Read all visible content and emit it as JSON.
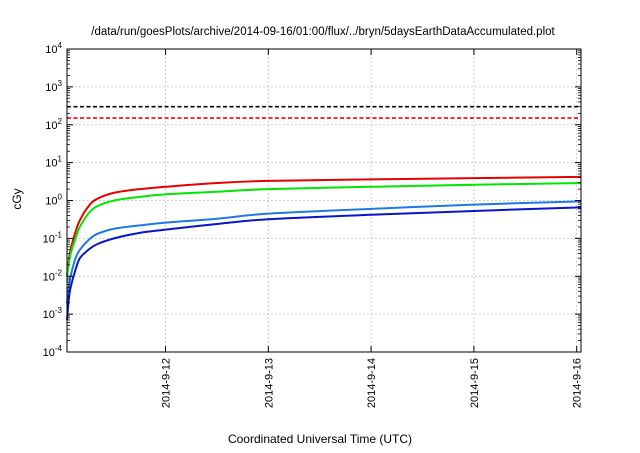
{
  "chart_data": {
    "type": "line",
    "title": "/data/run/goesPlots/archive/2014-09-16/01:00/flux/../bryn/5daysEarthDataAccumulated.plot",
    "xlabel": "Coordinated Universal Time (UTC)",
    "ylabel": "cGy",
    "y_scale": "log",
    "ylim": [
      0.0001,
      10000
    ],
    "y_ticks": [
      {
        "base": "10",
        "exp": "-4",
        "value": 0.0001
      },
      {
        "base": "10",
        "exp": "-3",
        "value": 0.001
      },
      {
        "base": "10",
        "exp": "-2",
        "value": 0.01
      },
      {
        "base": "10",
        "exp": "-1",
        "value": 0.1
      },
      {
        "base": "10",
        "exp": "0",
        "value": 1
      },
      {
        "base": "10",
        "exp": "1",
        "value": 10
      },
      {
        "base": "10",
        "exp": "2",
        "value": 100
      },
      {
        "base": "10",
        "exp": "3",
        "value": 1000
      },
      {
        "base": "10",
        "exp": "4",
        "value": 10000
      }
    ],
    "xlim": [
      "2014-09-11T01:00",
      "2014-09-16T01:00"
    ],
    "x_ticks": [
      "2014-9-12",
      "2014-9-13",
      "2014-9-14",
      "2014-9-15",
      "2014-9-16"
    ],
    "x_tick_dates": [
      "2014-09-12T00:00",
      "2014-09-13T00:00",
      "2014-09-14T00:00",
      "2014-09-15T00:00",
      "2014-09-16T00:00"
    ],
    "grid": true,
    "legend": "none",
    "reference_lines": [
      {
        "color": "#000000",
        "style": "dashed",
        "value": 300
      },
      {
        "color": "#ff0000",
        "style": "dashed",
        "value": 150
      }
    ],
    "series": [
      {
        "color": "#e60000",
        "points": [
          [
            "2014-09-11T01:00",
            0.01
          ],
          [
            "2014-09-11T01:30",
            0.03
          ],
          [
            "2014-09-11T02:00",
            0.06
          ],
          [
            "2014-09-11T03:00",
            0.15
          ],
          [
            "2014-09-11T04:00",
            0.3
          ],
          [
            "2014-09-11T06:00",
            0.7
          ],
          [
            "2014-09-11T08:00",
            1.1
          ],
          [
            "2014-09-11T12:00",
            1.6
          ],
          [
            "2014-09-11T18:00",
            2.0
          ],
          [
            "2014-09-12T00:00",
            2.3
          ],
          [
            "2014-09-12T12:00",
            2.9
          ],
          [
            "2014-09-13T00:00",
            3.3
          ],
          [
            "2014-09-14T00:00",
            3.6
          ],
          [
            "2014-09-15T00:00",
            3.9
          ],
          [
            "2014-09-16T01:00",
            4.2
          ]
        ]
      },
      {
        "color": "#00e600",
        "points": [
          [
            "2014-09-11T01:00",
            0.01
          ],
          [
            "2014-09-11T01:30",
            0.025
          ],
          [
            "2014-09-11T02:00",
            0.045
          ],
          [
            "2014-09-11T03:00",
            0.1
          ],
          [
            "2014-09-11T04:00",
            0.2
          ],
          [
            "2014-09-11T06:00",
            0.45
          ],
          [
            "2014-09-11T08:00",
            0.7
          ],
          [
            "2014-09-11T12:00",
            1.0
          ],
          [
            "2014-09-11T18:00",
            1.25
          ],
          [
            "2014-09-12T00:00",
            1.45
          ],
          [
            "2014-09-12T12:00",
            1.7
          ],
          [
            "2014-09-13T00:00",
            2.0
          ],
          [
            "2014-09-14T00:00",
            2.3
          ],
          [
            "2014-09-15T00:00",
            2.6
          ],
          [
            "2014-09-16T01:00",
            2.9
          ]
        ]
      },
      {
        "color": "#1e78e6",
        "points": [
          [
            "2014-09-11T01:00",
            0.002
          ],
          [
            "2014-09-11T01:30",
            0.006
          ],
          [
            "2014-09-11T02:00",
            0.012
          ],
          [
            "2014-09-11T03:00",
            0.03
          ],
          [
            "2014-09-11T04:00",
            0.05
          ],
          [
            "2014-09-11T06:00",
            0.09
          ],
          [
            "2014-09-11T08:00",
            0.13
          ],
          [
            "2014-09-11T12:00",
            0.18
          ],
          [
            "2014-09-11T18:00",
            0.22
          ],
          [
            "2014-09-12T00:00",
            0.26
          ],
          [
            "2014-09-12T12:00",
            0.33
          ],
          [
            "2014-09-13T00:00",
            0.45
          ],
          [
            "2014-09-14T00:00",
            0.6
          ],
          [
            "2014-09-15T00:00",
            0.78
          ],
          [
            "2014-09-16T01:00",
            0.95
          ]
        ]
      },
      {
        "color": "#0a14c8",
        "points": [
          [
            "2014-09-11T01:00",
            0.0007
          ],
          [
            "2014-09-11T01:30",
            0.003
          ],
          [
            "2014-09-11T02:00",
            0.006
          ],
          [
            "2014-09-11T03:00",
            0.015
          ],
          [
            "2014-09-11T04:00",
            0.03
          ],
          [
            "2014-09-11T06:00",
            0.05
          ],
          [
            "2014-09-11T08:00",
            0.07
          ],
          [
            "2014-09-11T12:00",
            0.1
          ],
          [
            "2014-09-11T18:00",
            0.14
          ],
          [
            "2014-09-12T00:00",
            0.17
          ],
          [
            "2014-09-12T12:00",
            0.24
          ],
          [
            "2014-09-13T00:00",
            0.32
          ],
          [
            "2014-09-14T00:00",
            0.42
          ],
          [
            "2014-09-15T00:00",
            0.53
          ],
          [
            "2014-09-16T01:00",
            0.66
          ]
        ]
      }
    ]
  }
}
